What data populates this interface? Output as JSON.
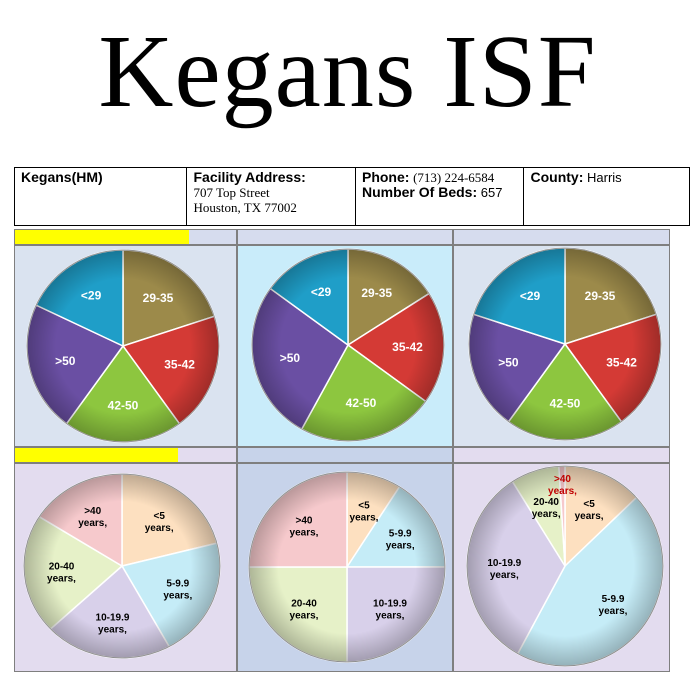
{
  "page_title": "Kegans ISF",
  "facility": {
    "name": "Kegans(HM)",
    "address_label": "Facility Address:",
    "address_line1": "707 Top Street",
    "address_line2": "Houston, TX 77002",
    "phone_label": "Phone:",
    "phone": "(713) 224-6584",
    "beds_label": "Number Of Beds:",
    "beds": "657",
    "county_label": "County:",
    "county": "Harris"
  },
  "colors": {
    "teal": "#1f9ec8",
    "olive": "#9c8a4a",
    "red": "#d43a35",
    "green": "#8dc63f",
    "purple": "#6a4fa3",
    "peach": "#fde0c0",
    "lightblue": "#c5ecf7",
    "lavender": "#d8d0ea",
    "lightgreen": "#e6f1c8",
    "pink": "#f6c9cc",
    "darkred": "#c00000",
    "yellow": "#ffff00"
  },
  "chart_data": [
    {
      "type": "pie",
      "categories": [
        "29-35",
        "35-42",
        "42-50",
        ">50",
        "<29"
      ],
      "values": [
        20,
        20,
        20,
        22,
        18
      ]
    },
    {
      "type": "pie",
      "categories": [
        "29-35",
        "35-42",
        "42-50",
        ">50",
        "<29"
      ],
      "values": [
        16,
        19,
        23,
        27,
        15
      ]
    },
    {
      "type": "pie",
      "categories": [
        "29-35",
        "35-42",
        "42-50",
        ">50",
        "<29"
      ],
      "values": [
        20,
        20,
        20,
        20,
        20
      ]
    },
    {
      "type": "pie",
      "categories": [
        "<5 years,",
        "5-9.9 years,",
        "10-19.9 years,",
        "20-40 years,",
        ">40 years,"
      ],
      "values": [
        21,
        21,
        21,
        21,
        16
      ]
    },
    {
      "type": "pie",
      "categories": [
        "<5 years,",
        "5-9.9 years,",
        "10-19.9 years,",
        "20-40 years,",
        ">40 years,"
      ],
      "values": [
        9,
        16,
        25,
        25,
        25
      ]
    },
    {
      "type": "pie",
      "categories": [
        "<5 years,",
        "5-9.9 years,",
        "10-19.9 years,",
        "20-40 years,",
        ">40 years,"
      ],
      "values": [
        13,
        45,
        33,
        8,
        1
      ]
    }
  ]
}
